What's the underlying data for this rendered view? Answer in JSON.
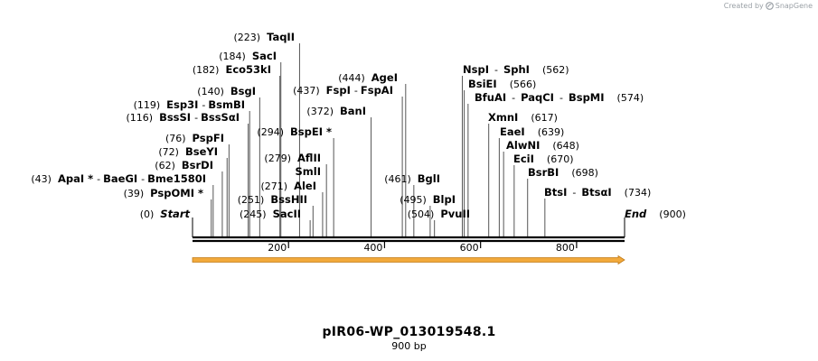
{
  "credit": {
    "prefix": "Created by",
    "brand": "SnapGene",
    "icon": "snapgene-logo-icon"
  },
  "title": "pIR06-WP_013019548.1",
  "length_label": "900 bp",
  "sequence_length": 900,
  "ruler_ticks": [
    {
      "value": 200,
      "label": "200"
    },
    {
      "value": 400,
      "label": "400"
    },
    {
      "value": 600,
      "label": "600"
    },
    {
      "value": 800,
      "label": "800"
    }
  ],
  "feature_arrow": {
    "start": 0,
    "end": 900,
    "color": "#f2a93b",
    "outline": "#c07a16"
  },
  "site_color": "#000000",
  "sites": [
    {
      "pos": 0,
      "pos_label": "(0)",
      "names": [
        "Start"
      ],
      "is_end": true
    },
    {
      "pos": 39,
      "pos_label": "(39)",
      "names": [
        "PspOMI *"
      ]
    },
    {
      "pos": 43,
      "pos_label": "(43)",
      "names": [
        "ApaI *",
        "BaeGI",
        "Bme1580I"
      ]
    },
    {
      "pos": 62,
      "pos_label": "(62)",
      "names": [
        "BsrDI"
      ]
    },
    {
      "pos": 72,
      "pos_label": "(72)",
      "names": [
        "BseYI"
      ]
    },
    {
      "pos": 76,
      "pos_label": "(76)",
      "names": [
        "PspFI"
      ]
    },
    {
      "pos": 116,
      "pos_label": "(116)",
      "names": [
        "BssSI",
        "BssSαI"
      ]
    },
    {
      "pos": 119,
      "pos_label": "(119)",
      "names": [
        "Esp3I",
        "BsmBI"
      ]
    },
    {
      "pos": 140,
      "pos_label": "(140)",
      "names": [
        "BsgI"
      ]
    },
    {
      "pos": 182,
      "pos_label": "(182)",
      "names": [
        "Eco53kI"
      ]
    },
    {
      "pos": 184,
      "pos_label": "(184)",
      "names": [
        "SacI"
      ]
    },
    {
      "pos": 223,
      "pos_label": "(223)",
      "names": [
        "TaqII"
      ]
    },
    {
      "pos": 245,
      "pos_label": "(245)",
      "names": [
        "SacII"
      ]
    },
    {
      "pos": 251,
      "pos_label": "(251)",
      "names": [
        "BssHII"
      ]
    },
    {
      "pos": 271,
      "pos_label": "(271)",
      "names": [
        "AleI"
      ]
    },
    {
      "pos": 279,
      "pos_label": "(279)",
      "names": [
        "AflII",
        "SmlI"
      ]
    },
    {
      "pos": 294,
      "pos_label": "(294)",
      "names": [
        "BspEI *"
      ]
    },
    {
      "pos": 372,
      "pos_label": "(372)",
      "names": [
        "BanI"
      ]
    },
    {
      "pos": 437,
      "pos_label": "(437)",
      "names": [
        "FspI",
        "FspAI"
      ]
    },
    {
      "pos": 444,
      "pos_label": "(444)",
      "names": [
        "AgeI"
      ]
    },
    {
      "pos": 461,
      "pos_label": "(461)",
      "names": [
        "BglI"
      ]
    },
    {
      "pos": 495,
      "pos_label": "(495)",
      "names": [
        "BlpI"
      ]
    },
    {
      "pos": 504,
      "pos_label": "(504)",
      "names": [
        "PvuII"
      ]
    },
    {
      "pos": 562,
      "pos_label": "(562)",
      "names": [
        "NspI",
        "SphI"
      ]
    },
    {
      "pos": 566,
      "pos_label": "(566)",
      "names": [
        "BsiEI"
      ]
    },
    {
      "pos": 574,
      "pos_label": "(574)",
      "names": [
        "BfuAI",
        "PaqCI",
        "BspMI"
      ]
    },
    {
      "pos": 617,
      "pos_label": "(617)",
      "names": [
        "XmnI"
      ]
    },
    {
      "pos": 639,
      "pos_label": "(639)",
      "names": [
        "EaeI"
      ]
    },
    {
      "pos": 648,
      "pos_label": "(648)",
      "names": [
        "AlwNI"
      ]
    },
    {
      "pos": 670,
      "pos_label": "(670)",
      "names": [
        "EciI"
      ]
    },
    {
      "pos": 698,
      "pos_label": "(698)",
      "names": [
        "BsrBI"
      ]
    },
    {
      "pos": 734,
      "pos_label": "(734)",
      "names": [
        "BtsI",
        "BtsαI"
      ]
    },
    {
      "pos": 900,
      "pos_label": "(900)",
      "names": [
        "End"
      ],
      "is_end": true
    }
  ]
}
